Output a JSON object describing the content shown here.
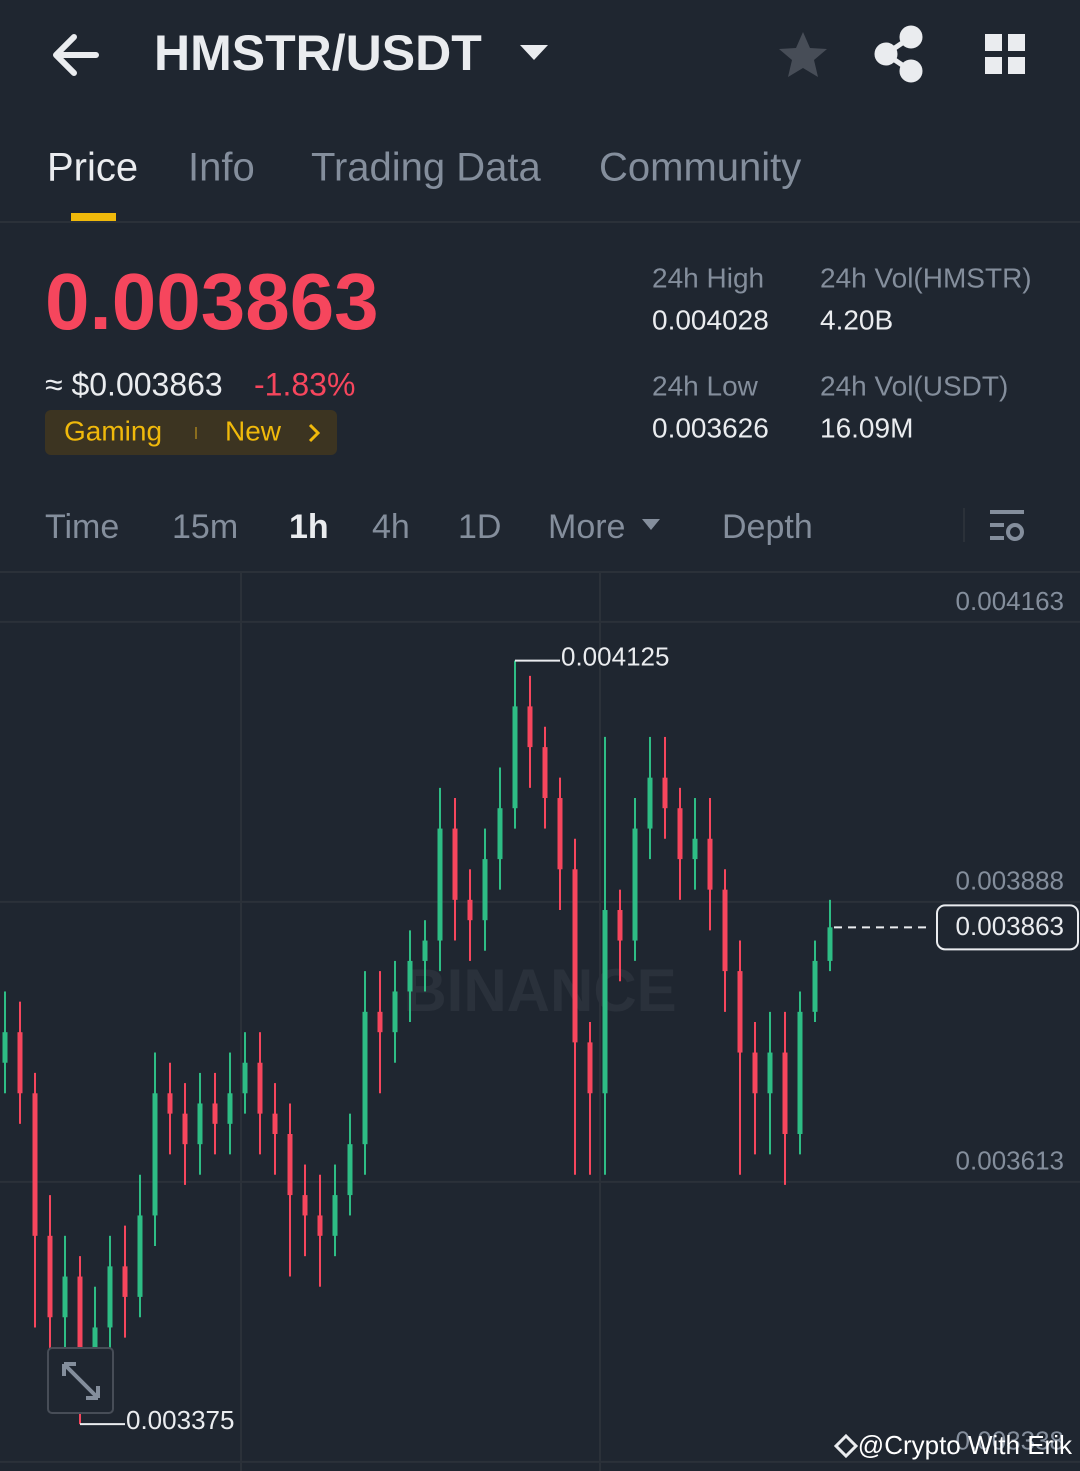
{
  "header": {
    "title": "HMSTR/USDT"
  },
  "tabs": [
    "Price",
    "Info",
    "Trading Data",
    "Community"
  ],
  "price": {
    "last": "0.003863",
    "usd": "≈ $0.003863",
    "change": "-1.83%",
    "tags": [
      "Gaming",
      "New"
    ]
  },
  "stats": [
    {
      "label": "24h High",
      "value": "0.004028"
    },
    {
      "label": "24h Vol(HMSTR)",
      "value": "4.20B"
    },
    {
      "label": "24h Low",
      "value": "0.003626"
    },
    {
      "label": "24h Vol(USDT)",
      "value": "16.09M"
    }
  ],
  "intervals": [
    "Time",
    "15m",
    "1h",
    "4h",
    "1D",
    "More",
    "Depth"
  ],
  "chart_data": {
    "type": "candlestick",
    "watermark": "BINANCE",
    "ylim": [
      0.003329,
      0.004212
    ],
    "yticks": [
      0.004163,
      0.003888,
      0.003613,
      0.003338
    ],
    "grid": true,
    "up_color": "#2ebd85",
    "down_color": "#f6465d",
    "last_price": 0.003863,
    "max_label": 0.004125,
    "min_label": 0.003375,
    "open": [
      0.00373,
      0.00376,
      0.0037,
      0.00356,
      0.00348,
      0.00352,
      0.00343,
      0.00347,
      0.00353,
      0.0035,
      0.00358,
      0.0037,
      0.00368,
      0.00365,
      0.00369,
      0.00367,
      0.0037,
      0.00373,
      0.00368,
      0.00366,
      0.0036,
      0.00358,
      0.00356,
      0.0036,
      0.00365,
      0.00378,
      0.00376,
      0.0038,
      0.00383,
      0.00385,
      0.00396,
      0.00389,
      0.00387,
      0.00393,
      0.00398,
      0.00408,
      0.00404,
      0.00399,
      0.00392,
      0.00375,
      0.0037,
      0.00388,
      0.00385,
      0.00396,
      0.00401,
      0.00398,
      0.00393,
      0.00395,
      0.0039,
      0.00382,
      0.00374,
      0.0037,
      0.00374,
      0.00366,
      0.00378,
      0.00383
    ],
    "high": [
      0.0038,
      0.00379,
      0.00372,
      0.0036,
      0.00356,
      0.00354,
      0.00351,
      0.00356,
      0.00357,
      0.00362,
      0.00374,
      0.00373,
      0.00371,
      0.00372,
      0.00372,
      0.00374,
      0.00376,
      0.00376,
      0.00371,
      0.00369,
      0.00363,
      0.00362,
      0.00363,
      0.00368,
      0.00382,
      0.00382,
      0.00383,
      0.00386,
      0.00387,
      0.004,
      0.00399,
      0.00392,
      0.00396,
      0.00402,
      0.004125,
      0.00411,
      0.00406,
      0.00401,
      0.00395,
      0.00377,
      0.00405,
      0.0039,
      0.00399,
      0.00405,
      0.00405,
      0.004,
      0.00399,
      0.00399,
      0.00392,
      0.00385,
      0.00377,
      0.00378,
      0.00378,
      0.0038,
      0.00385,
      0.00389
    ],
    "low": [
      0.0037,
      0.00367,
      0.00347,
      0.00343,
      0.00345,
      0.003375,
      0.0034,
      0.00344,
      0.00346,
      0.00348,
      0.00355,
      0.00364,
      0.00361,
      0.00362,
      0.00364,
      0.00364,
      0.00368,
      0.00364,
      0.00362,
      0.00352,
      0.00354,
      0.00351,
      0.00354,
      0.00358,
      0.00362,
      0.0037,
      0.00373,
      0.00377,
      0.0038,
      0.00382,
      0.00385,
      0.00383,
      0.00384,
      0.0039,
      0.00396,
      0.004,
      0.00396,
      0.00388,
      0.00362,
      0.00362,
      0.00362,
      0.00381,
      0.00383,
      0.00393,
      0.00395,
      0.00389,
      0.0039,
      0.00386,
      0.00378,
      0.00362,
      0.00364,
      0.00364,
      0.00361,
      0.00364,
      0.00377,
      0.00382
    ],
    "close": [
      0.00376,
      0.0037,
      0.00356,
      0.00348,
      0.00352,
      0.00343,
      0.00347,
      0.00353,
      0.0035,
      0.00358,
      0.0037,
      0.00368,
      0.00365,
      0.00369,
      0.00367,
      0.0037,
      0.00373,
      0.00368,
      0.00366,
      0.0036,
      0.00358,
      0.00356,
      0.0036,
      0.00365,
      0.00378,
      0.00376,
      0.0038,
      0.00383,
      0.00385,
      0.00396,
      0.00389,
      0.00387,
      0.00393,
      0.00398,
      0.00408,
      0.00404,
      0.00399,
      0.00392,
      0.00375,
      0.0037,
      0.00388,
      0.00385,
      0.00396,
      0.00401,
      0.00398,
      0.00393,
      0.00395,
      0.0039,
      0.00382,
      0.00374,
      0.0037,
      0.00374,
      0.00366,
      0.00378,
      0.00383,
      0.003863
    ]
  },
  "watermark": "@Crypto With Erik"
}
